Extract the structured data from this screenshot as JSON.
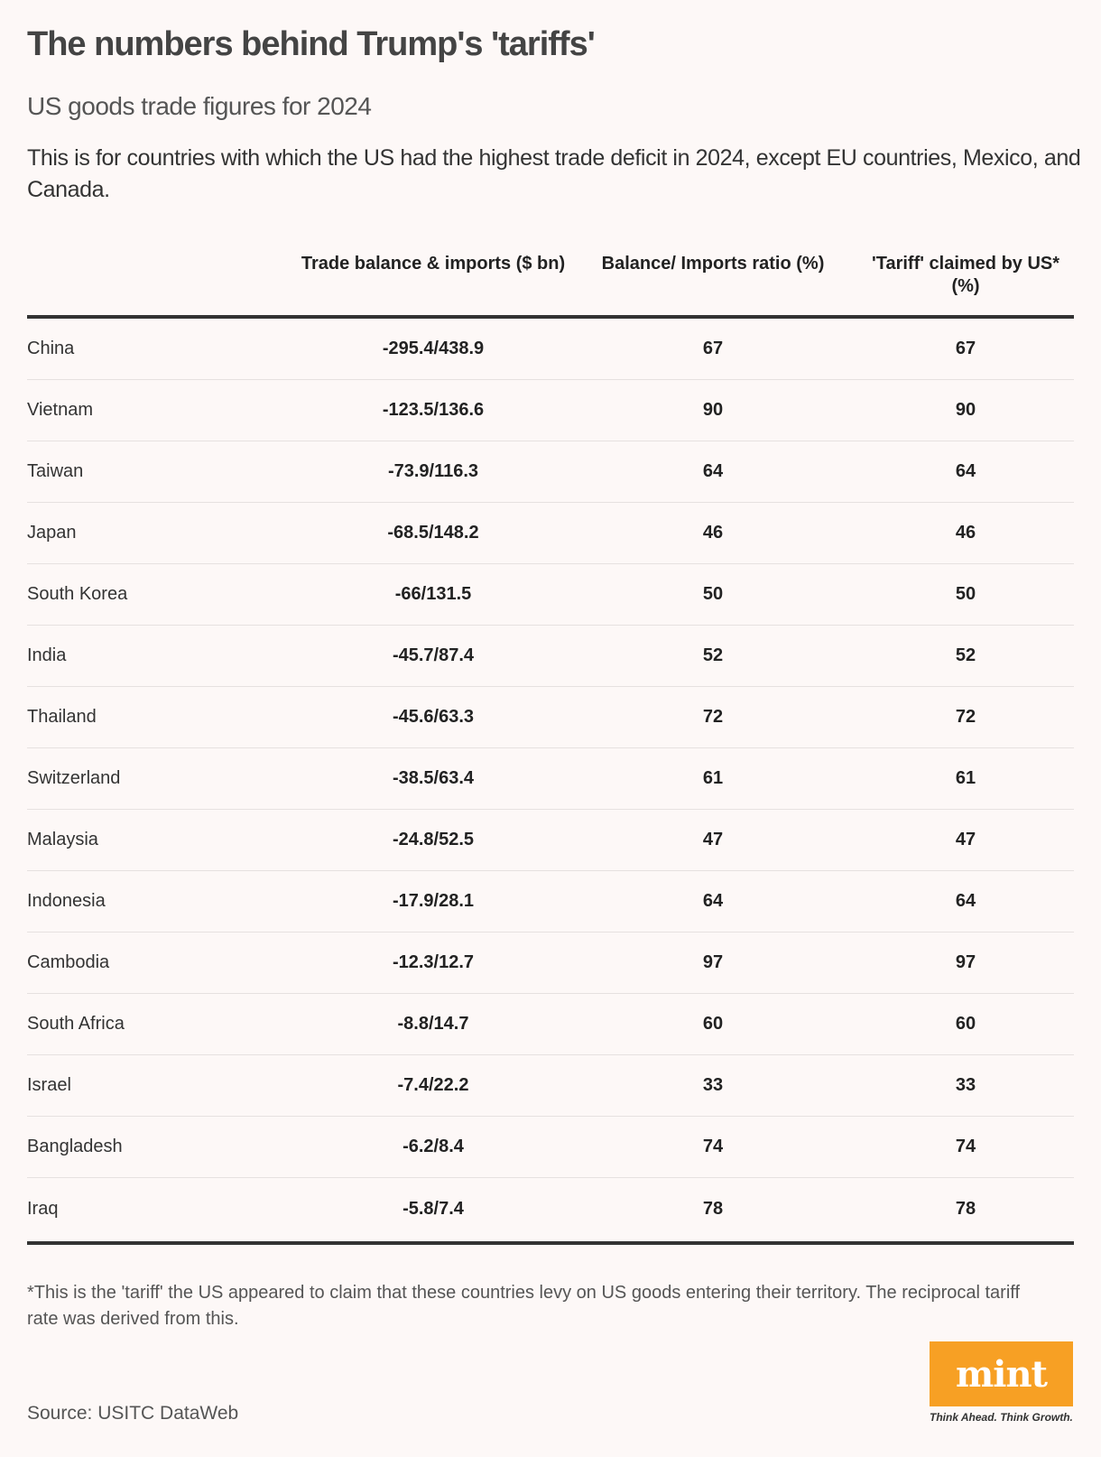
{
  "header": {
    "title": "The numbers behind Trump's 'tariffs'",
    "subtitle": "US goods trade figures for 2024",
    "description": "This is for countries with which the US had the highest trade deficit in 2024, except EU countries, Mexico, and Canada."
  },
  "table": {
    "columns": [
      "",
      "Trade balance & imports ($ bn)",
      "Balance/ Imports ratio (%)",
      "'Tariff' claimed by US* (%)"
    ],
    "rows": [
      [
        "China",
        "-295.4/438.9",
        "67",
        "67"
      ],
      [
        "Vietnam",
        "-123.5/136.6",
        "90",
        "90"
      ],
      [
        "Taiwan",
        "-73.9/116.3",
        "64",
        "64"
      ],
      [
        "Japan",
        "-68.5/148.2",
        "46",
        "46"
      ],
      [
        "South Korea",
        "-66/131.5",
        "50",
        "50"
      ],
      [
        "India",
        "-45.7/87.4",
        "52",
        "52"
      ],
      [
        "Thailand",
        "-45.6/63.3",
        "72",
        "72"
      ],
      [
        "Switzerland",
        "-38.5/63.4",
        "61",
        "61"
      ],
      [
        "Malaysia",
        "-24.8/52.5",
        "47",
        "47"
      ],
      [
        "Indonesia",
        "-17.9/28.1",
        "64",
        "64"
      ],
      [
        "Cambodia",
        "-12.3/12.7",
        "97",
        "97"
      ],
      [
        "South Africa",
        "-8.8/14.7",
        "60",
        "60"
      ],
      [
        "Israel",
        "-7.4/22.2",
        "33",
        "33"
      ],
      [
        "Bangladesh",
        "-6.2/8.4",
        "74",
        "74"
      ],
      [
        "Iraq",
        "-5.8/7.4",
        "78",
        "78"
      ]
    ]
  },
  "footnote": "*This is the 'tariff' the US appeared to claim that these countries levy on US goods entering their territory. The reciprocal tariff rate was derived from this.",
  "source": "Source: USITC DataWeb",
  "logo": {
    "text": "mint",
    "tagline": "Think Ahead. Think Growth.",
    "color": "#f7a024"
  }
}
